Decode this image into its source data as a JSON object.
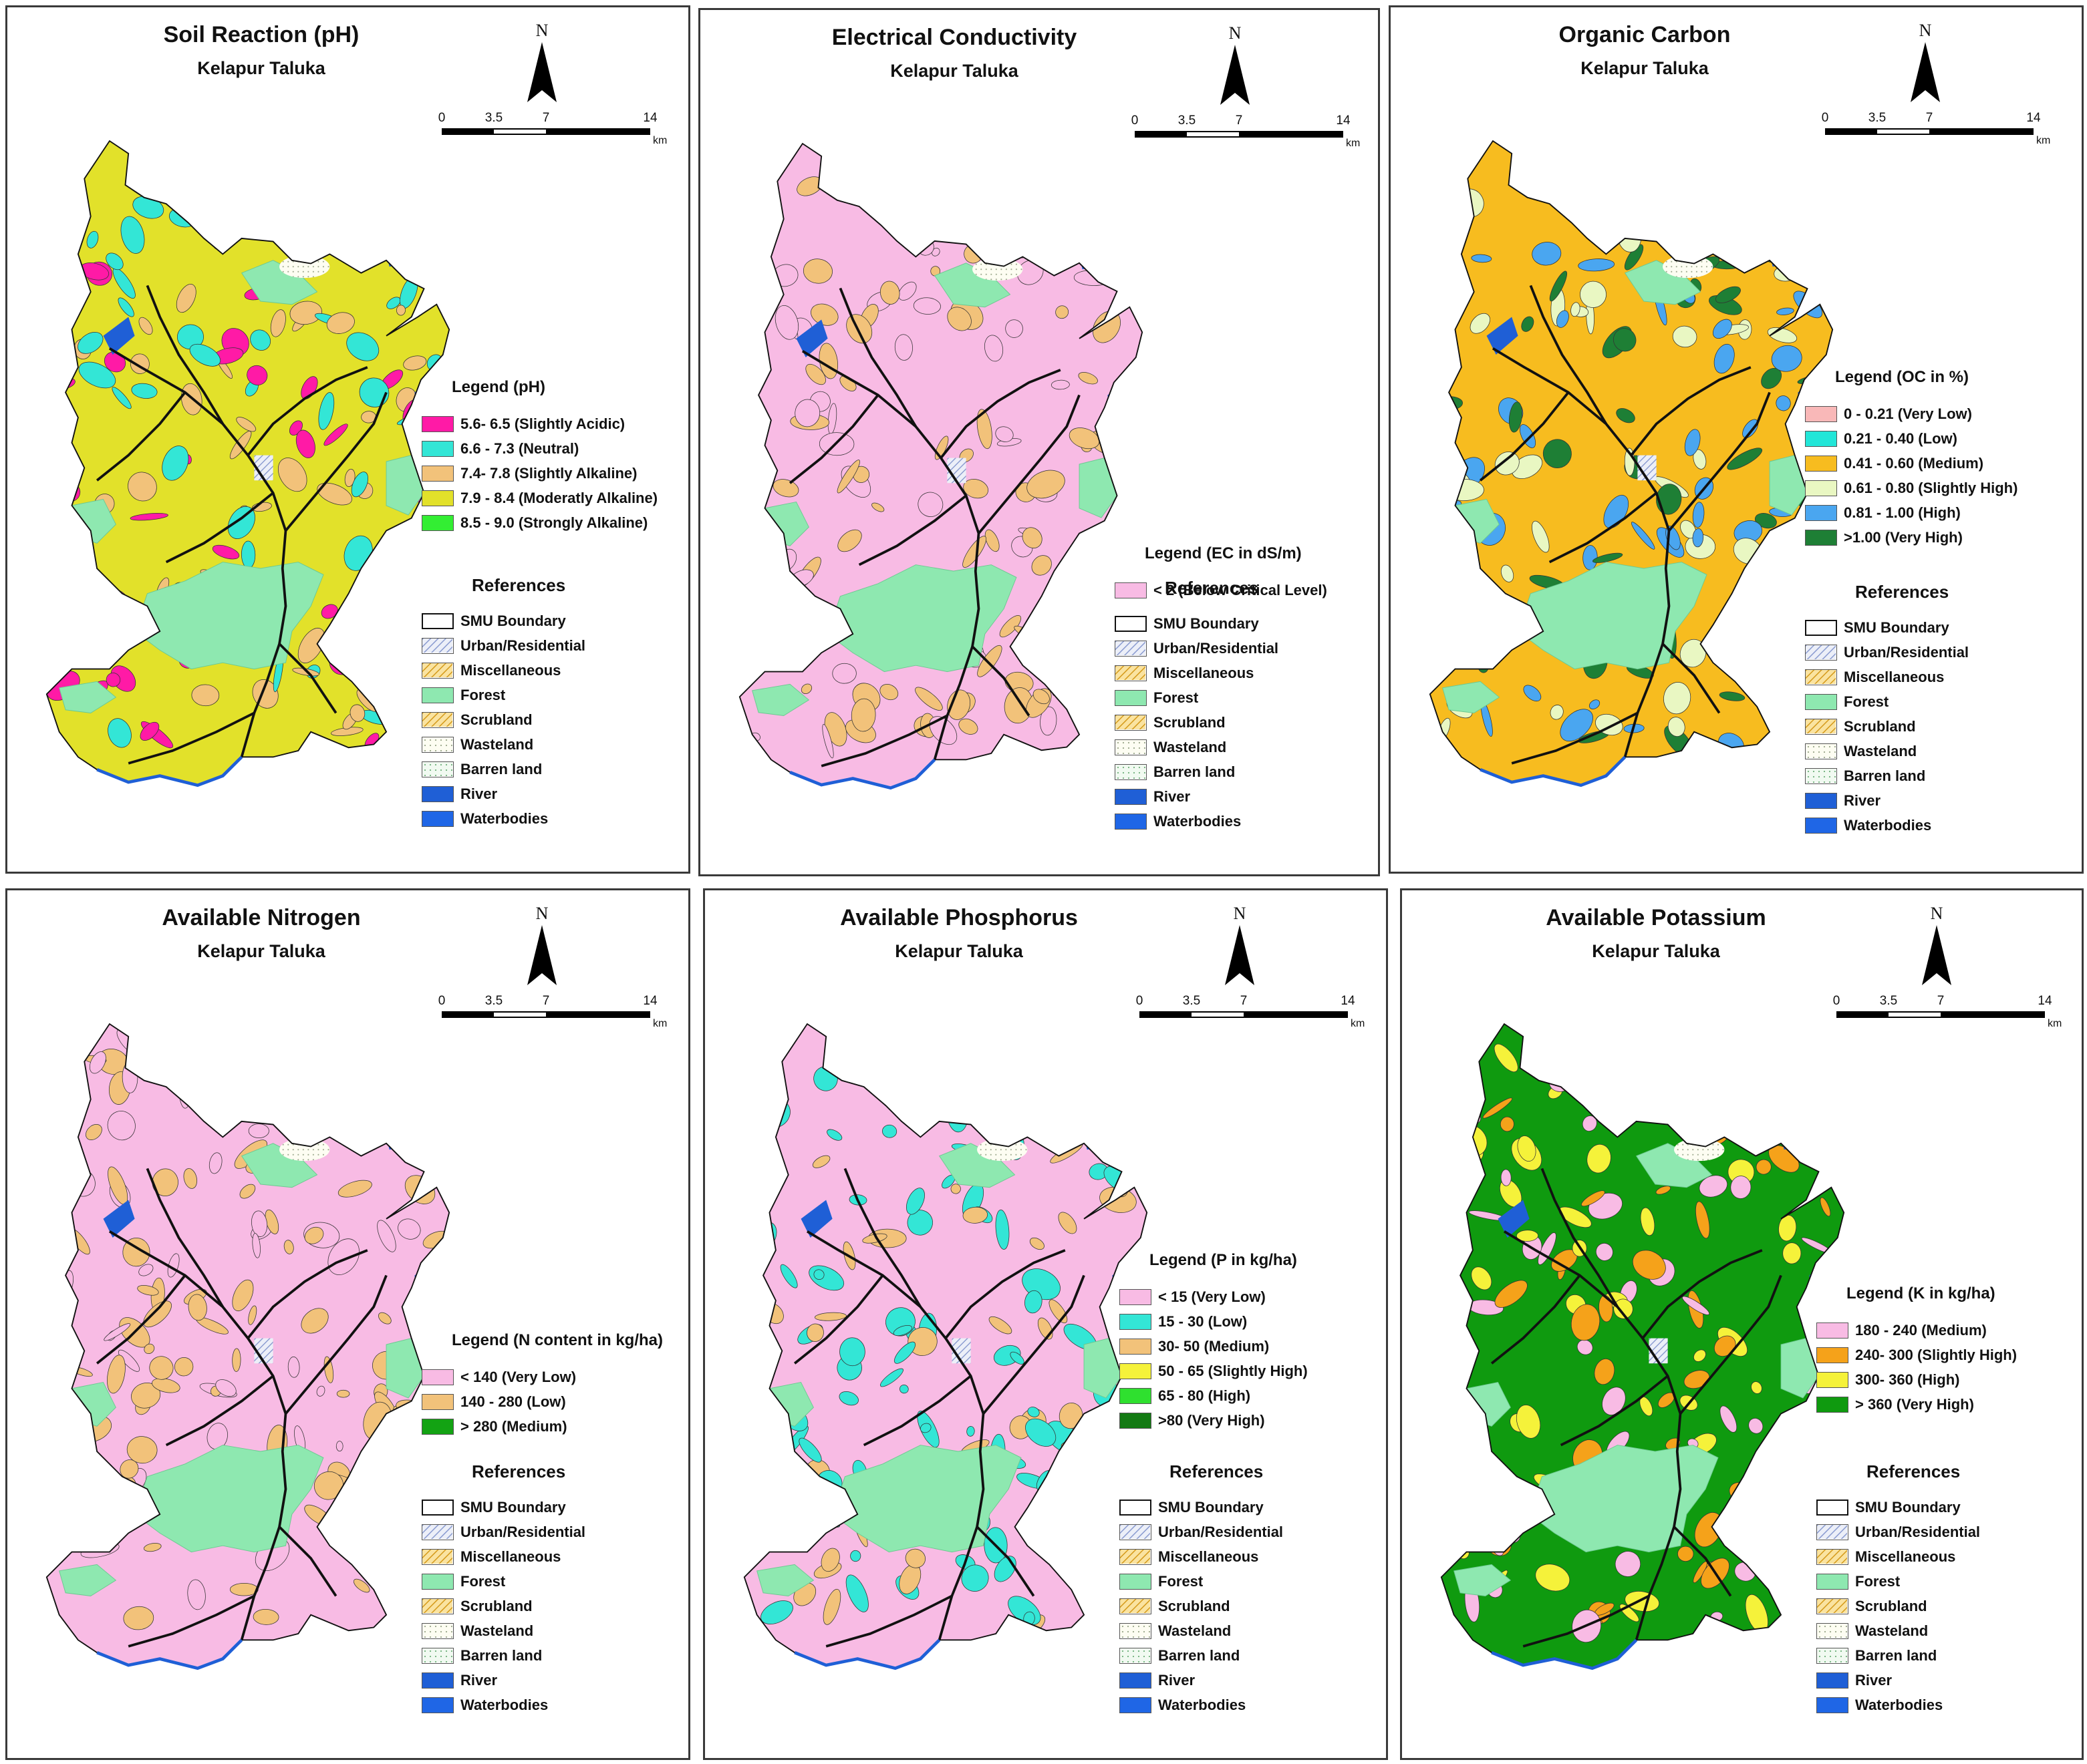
{
  "scale": {
    "ticks": [
      "0",
      "3.5",
      "7",
      "14"
    ],
    "unit": "km"
  },
  "north_label": "N",
  "colors": {
    "forest": "#8ee8b0",
    "river": "#1f5fd6",
    "boundary": "#111111"
  },
  "references": {
    "title": "References",
    "items": [
      {
        "label": "SMU Boundary",
        "fill": "#ffffff",
        "pattern": "none"
      },
      {
        "label": "Urban/Residential",
        "fill": "#e6e9f4",
        "pattern": "hatch-blue"
      },
      {
        "label": "Miscellaneous",
        "fill": "#f7d88a",
        "pattern": "hatch-orange"
      },
      {
        "label": "Forest",
        "fill": "#8ee8b0",
        "pattern": "none"
      },
      {
        "label": "Scrubland",
        "fill": "#f9e3a1",
        "pattern": "hatch-orange"
      },
      {
        "label": "Wasteland",
        "fill": "#fbfbee",
        "pattern": "dots"
      },
      {
        "label": "Barren land",
        "fill": "#eef8ee",
        "pattern": "dots-green"
      },
      {
        "label": "River",
        "fill": "#1f5fd6",
        "pattern": "none"
      },
      {
        "label": "Waterbodies",
        "fill": "#1f66e6",
        "pattern": "none"
      }
    ]
  },
  "panels": [
    {
      "title": "Soil Reaction (pH)",
      "subtitle": "Kelapur Taluka",
      "legend_title": "Legend  (pH)",
      "main_color": "#e2e12a",
      "accent_colors": [
        "#f2c27a",
        "#33e6d6",
        "#ff1aa6"
      ],
      "legend": [
        {
          "label": "5.6- 6.5 (Slightly Acidic)",
          "color": "#ff1aa6"
        },
        {
          "label": "6.6 - 7.3 (Neutral)",
          "color": "#33e6d6"
        },
        {
          "label": "7.4- 7.8 (Slightly Alkaline)",
          "color": "#f2c27a"
        },
        {
          "label": "7.9 - 8.4 (Moderatly Alkaline)",
          "color": "#e2e12a"
        },
        {
          "label": "8.5 - 9.0 (Strongly Alkaline)",
          "color": "#33ee33"
        }
      ]
    },
    {
      "title": "Electrical Conductivity",
      "subtitle": "Kelapur Taluka",
      "legend_title": "Legend  (EC in dS/m)",
      "main_color": "#f8bbe4",
      "accent_colors": [
        "#f2c27a",
        "#f8bbe4",
        "#f2c27a"
      ],
      "legend": [
        {
          "label": "< 2 (Below Critical Level)",
          "color": "#f8bbe4"
        }
      ]
    },
    {
      "title": "Organic Carbon",
      "subtitle": "Kelapur Taluka",
      "legend_title": "Legend  (OC in %)",
      "main_color": "#f7bc1f",
      "accent_colors": [
        "#e9f7c2",
        "#1e7f35",
        "#4aa6f0"
      ],
      "legend": [
        {
          "label": "0 - 0.21 (Very Low)",
          "color": "#f9b8b8"
        },
        {
          "label": "0.21 - 0.40 (Low)",
          "color": "#22e6d8"
        },
        {
          "label": "0.41 - 0.60 (Medium)",
          "color": "#f7bc1f"
        },
        {
          "label": "0.61 - 0.80 (Slightly High)",
          "color": "#e9f7c2"
        },
        {
          "label": "0.81 - 1.00 (High)",
          "color": "#4aa6f0"
        },
        {
          "label": ">1.00 (Very High)",
          "color": "#1e7f35"
        }
      ]
    },
    {
      "title": "Available Nitrogen",
      "subtitle": "Kelapur Taluka",
      "legend_title": "Legend  (N content in kg/ha)",
      "main_color": "#f8bbe4",
      "accent_colors": [
        "#f2c27a",
        "#f8bbe4",
        "#f2c27a"
      ],
      "legend": [
        {
          "label": "< 140 (Very Low)",
          "color": "#f8bbe4"
        },
        {
          "label": "140 - 280 (Low)",
          "color": "#f2c27a"
        },
        {
          "label": "> 280 (Medium)",
          "color": "#13a313"
        }
      ]
    },
    {
      "title": "Available Phosphorus",
      "subtitle": "Kelapur Taluka",
      "legend_title": "Legend (P in kg/ha)",
      "main_color": "#f8bbe4",
      "accent_colors": [
        "#33e6d6",
        "#33e6d6",
        "#f2c27a"
      ],
      "legend": [
        {
          "label": "< 15 (Very Low)",
          "color": "#f8bbe4"
        },
        {
          "label": "15 - 30 (Low)",
          "color": "#33e6d6"
        },
        {
          "label": "30- 50 (Medium)",
          "color": "#f2c27a"
        },
        {
          "label": "50 - 65 (Slightly High)",
          "color": "#f5f23a"
        },
        {
          "label": "65 - 80 (High)",
          "color": "#2fe02f"
        },
        {
          "label": ">80 (Very High)",
          "color": "#137a13"
        }
      ]
    },
    {
      "title": "Available Potassium",
      "subtitle": "Kelapur Taluka",
      "legend_title": "Legend (K in kg/ha)",
      "main_color": "#0f9a0f",
      "accent_colors": [
        "#f5f23a",
        "#f5a21a",
        "#f8bbe4"
      ],
      "legend": [
        {
          "label": "180 - 240 (Medium)",
          "color": "#f8bbe4"
        },
        {
          "label": "240- 300 (Slightly High)",
          "color": "#f5a21a"
        },
        {
          "label": "300- 360 (High)",
          "color": "#f5f23a"
        },
        {
          "label": "> 360 (Very High)",
          "color": "#0f9a0f"
        }
      ]
    }
  ]
}
